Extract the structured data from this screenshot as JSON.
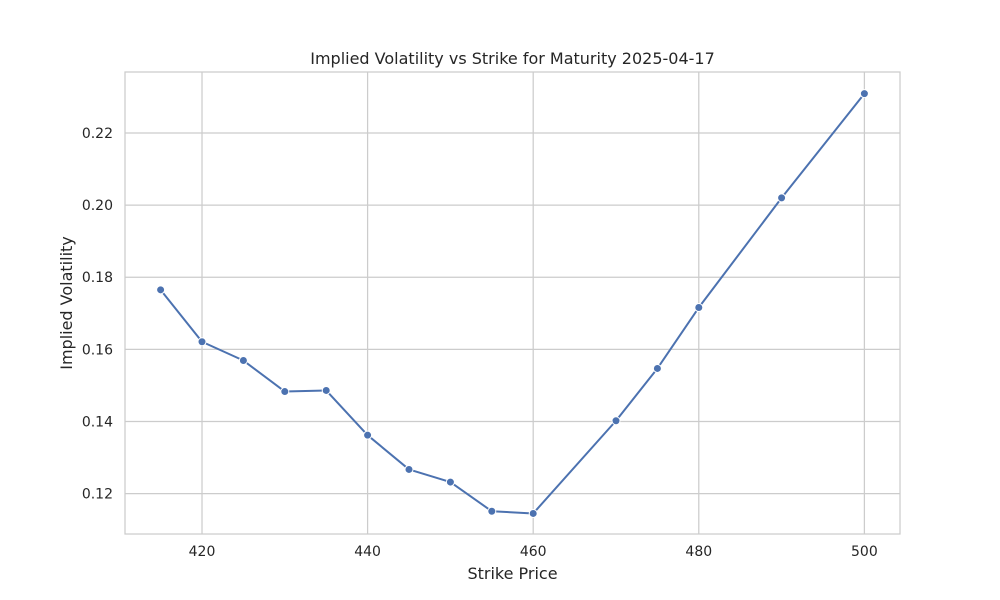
{
  "chart_data": {
    "type": "line",
    "title": "Implied Volatility vs Strike for Maturity 2025-04-17",
    "xlabel": "Strike Price",
    "ylabel": "Implied Volatility",
    "xlim": [
      410.7,
      504.3
    ],
    "ylim": [
      0.1088,
      0.2369
    ],
    "xticks": [
      420,
      440,
      460,
      480,
      500
    ],
    "xtick_labels": [
      "420",
      "440",
      "460",
      "480",
      "500"
    ],
    "yticks": [
      0.12,
      0.14,
      0.16,
      0.18,
      0.2,
      0.22
    ],
    "ytick_labels": [
      "0.12",
      "0.14",
      "0.16",
      "0.18",
      "0.20",
      "0.22"
    ],
    "grid": true,
    "color": "#4c72b0",
    "series": [
      {
        "x": [
          415,
          420,
          425,
          430,
          435,
          440,
          445,
          450,
          455,
          460,
          470,
          475,
          480,
          490,
          500
        ],
        "y": [
          0.1765,
          0.1621,
          0.1569,
          0.1483,
          0.1486,
          0.1362,
          0.1267,
          0.1232,
          0.1151,
          0.1145,
          0.1402,
          0.1547,
          0.1716,
          0.202,
          0.2309
        ]
      }
    ]
  }
}
